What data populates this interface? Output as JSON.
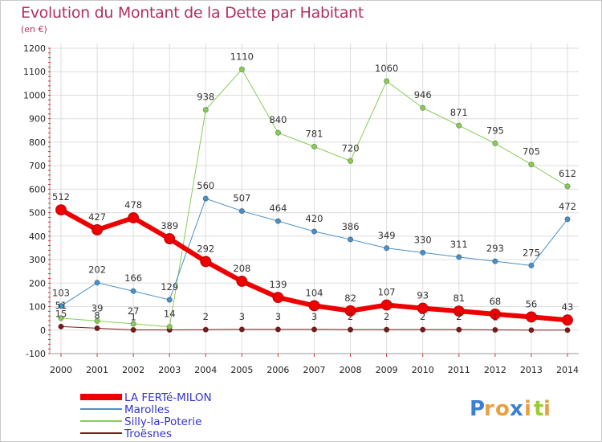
{
  "header": {
    "title": "Evolution du Montant de la Dette par Habitant",
    "unit": "(en €)"
  },
  "logo": {
    "letters": [
      "P",
      "r",
      "o",
      "x",
      "i",
      "t",
      "i"
    ],
    "colors": [
      "#3a7fd5",
      "#e8a040",
      "#e8a040",
      "#3a7fd5",
      "#e8a040",
      "#9acd32",
      "#e8a040"
    ]
  },
  "chart_data": {
    "type": "line",
    "title": "Evolution du Montant de la Dette par Habitant",
    "ylabel": "(en €)",
    "x": [
      2000,
      2001,
      2002,
      2003,
      2004,
      2005,
      2006,
      2007,
      2008,
      2009,
      2010,
      2011,
      2012,
      2013,
      2014
    ],
    "ylim": [
      -100,
      1200
    ],
    "yticks": [
      -100,
      0,
      100,
      200,
      300,
      400,
      500,
      600,
      700,
      800,
      900,
      1000,
      1100,
      1200
    ],
    "grid": true,
    "legend_position": "bottom-left",
    "series": [
      {
        "name": "LA FERTé-MILON",
        "color": "#ee0000",
        "width": 6,
        "values": [
          512,
          427,
          478,
          389,
          292,
          208,
          139,
          104,
          82,
          107,
          93,
          81,
          68,
          56,
          43
        ],
        "labels": [
          "512",
          "427",
          "478",
          "389",
          "292",
          "208",
          "139",
          "104",
          "82",
          "107",
          "93",
          "81",
          "68",
          "56",
          "43"
        ]
      },
      {
        "name": "Marolles",
        "color": "#4a90c8",
        "width": 1,
        "values": [
          103,
          202,
          166,
          129,
          560,
          507,
          464,
          420,
          386,
          349,
          330,
          311,
          293,
          275,
          472
        ],
        "labels": [
          "103",
          "202",
          "166",
          "129",
          "560",
          "507",
          "464",
          "420",
          "386",
          "349",
          "330",
          "311",
          "293",
          "275",
          "472"
        ]
      },
      {
        "name": "Silly-la-Poterie",
        "color": "#88cc55",
        "width": 1,
        "values": [
          51,
          39,
          27,
          14,
          938,
          1110,
          840,
          781,
          720,
          1060,
          946,
          871,
          795,
          705,
          612
        ],
        "labels": [
          "51",
          "39",
          "27",
          "14",
          "938",
          "1110",
          "840",
          "781",
          "720",
          "1060",
          "946",
          "871",
          "795",
          "705",
          "612"
        ]
      },
      {
        "name": "Troësnes",
        "color": "#7a1a1a",
        "width": 1,
        "values": [
          15,
          8,
          1,
          1,
          2,
          3,
          3,
          3,
          2,
          2,
          2,
          2,
          1,
          0,
          0
        ],
        "labels": [
          "15",
          "8",
          "1",
          "",
          "2",
          "3",
          "3",
          "3",
          "2",
          "2",
          "2",
          "2",
          "1",
          "",
          ""
        ]
      }
    ]
  }
}
